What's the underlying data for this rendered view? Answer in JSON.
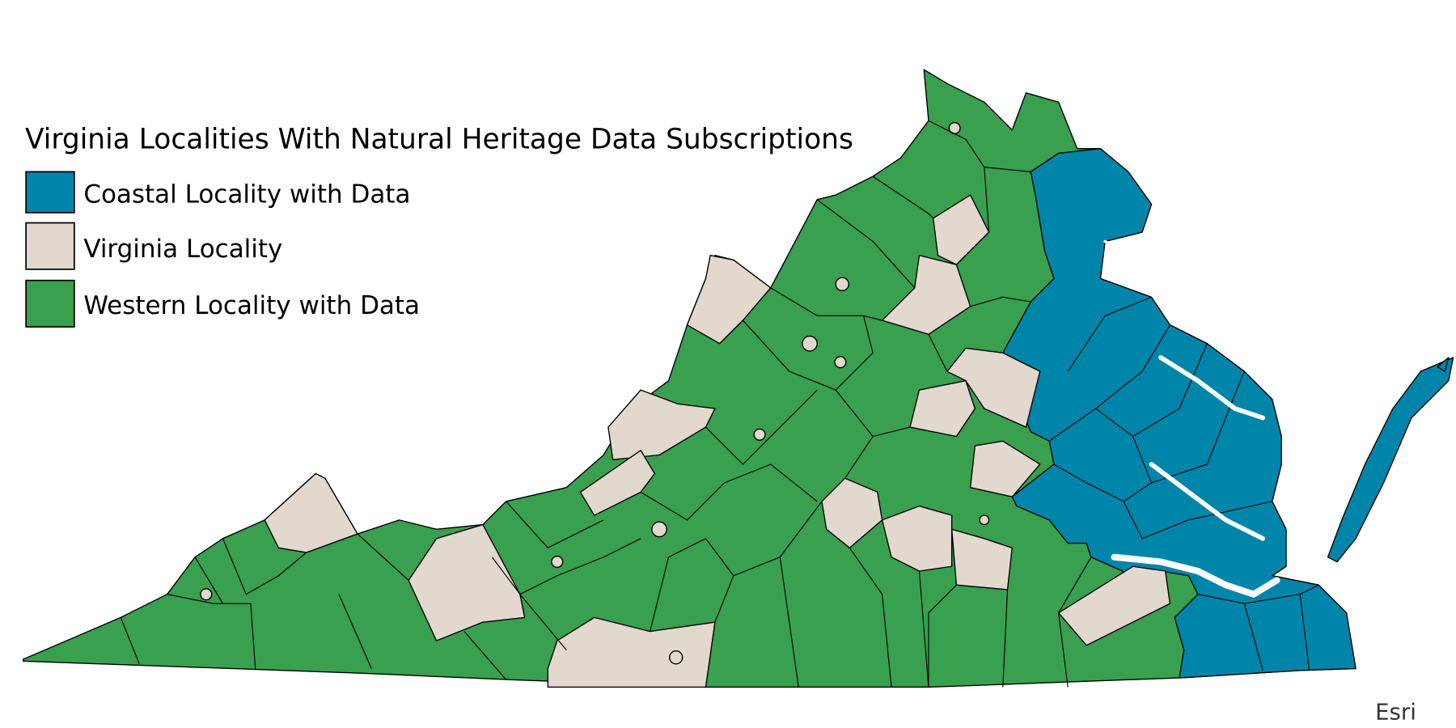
{
  "legend": {
    "title": "Virginia Localities With Natural Heritage Data Subscriptions",
    "items": [
      {
        "label": "Coastal Locality with Data",
        "color": "#0085AA"
      },
      {
        "label": "Virginia Locality",
        "color": "#E2D8CD"
      },
      {
        "label": "Western Locality with Data",
        "color": "#38A04E"
      }
    ]
  },
  "attribution": "Esri",
  "colors": {
    "coastal": "#0085AA",
    "locality": "#E2D8CD",
    "western": "#38A04E",
    "border": "#000000",
    "water": "#FFFFFF"
  }
}
